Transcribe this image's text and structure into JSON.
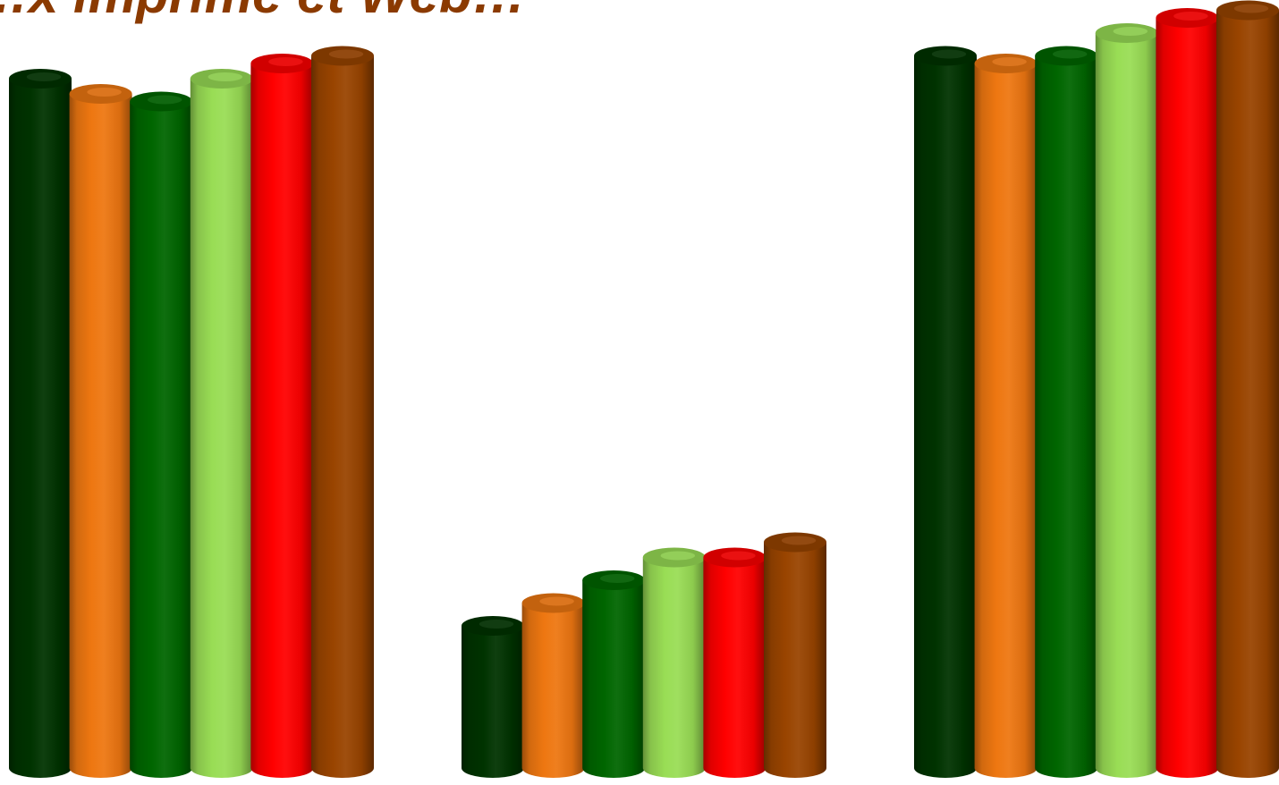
{
  "page": {
    "title": "…x imprimé et Web…"
  },
  "chart_data": {
    "type": "bar",
    "style": "3d-cylinder",
    "title": "…x imprimé et Web…",
    "xlabel": "",
    "ylabel": "",
    "ylim": [
      0,
      100
    ],
    "grid": false,
    "legend": "none",
    "categories": [
      "",
      "",
      ""
    ],
    "series": [
      {
        "color": "#003300",
        "values": [
          92,
          20,
          95
        ]
      },
      {
        "color": "#EE7711",
        "values": [
          90,
          23,
          94
        ]
      },
      {
        "color": "#006600",
        "values": [
          89,
          26,
          95
        ]
      },
      {
        "color": "#99DD55",
        "values": [
          92,
          29,
          98
        ]
      },
      {
        "color": "#FF0000",
        "values": [
          94,
          29,
          100
        ]
      },
      {
        "color": "#994400",
        "values": [
          95,
          31,
          101
        ]
      }
    ]
  }
}
